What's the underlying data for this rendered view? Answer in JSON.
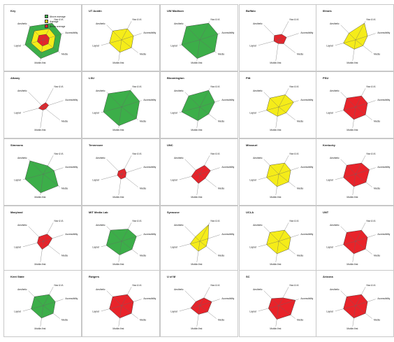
{
  "colors": {
    "above": "#3cae49",
    "average": "#f5ec19",
    "below": "#e8232a",
    "axis": "#666666"
  },
  "legend": [
    {
      "label": "Above average",
      "level": "above"
    },
    {
      "label": "Average",
      "level": "average"
    },
    {
      "label": "Below average",
      "level": "below"
    }
  ],
  "axes": [
    "Nav & IA",
    "Accessibility",
    "Media",
    "Mobile-first",
    "Layout",
    "Aesthetic"
  ],
  "chart_data": [
    {
      "type": "radar",
      "title": "Key",
      "key": true
    },
    {
      "type": "radar",
      "title": "UT Austin",
      "rating": "average",
      "values": [
        2,
        2,
        2,
        2,
        2,
        2
      ]
    },
    {
      "type": "radar",
      "title": "UW Madison",
      "rating": "above",
      "values": [
        3,
        3,
        3,
        3,
        3,
        3
      ]
    },
    {
      "type": "radar",
      "title": "Buffalo",
      "rating": "below",
      "values": [
        1,
        1.3,
        1,
        0.6,
        0.8,
        1
      ]
    },
    {
      "type": "radar",
      "title": "Illinois",
      "rating": "average",
      "values": [
        3,
        2,
        1.5,
        1.5,
        2,
        1.5
      ]
    },
    {
      "type": "radar",
      "title": "Albany",
      "rating": "below",
      "values": [
        0.8,
        0.9,
        0.5,
        0.5,
        0.8,
        0.4
      ]
    },
    {
      "type": "radar",
      "title": "LSU",
      "rating": "above",
      "values": [
        3,
        3,
        3,
        3,
        3,
        3
      ]
    },
    {
      "type": "radar",
      "title": "Bloomington",
      "rating": "above",
      "values": [
        3,
        2.5,
        1.8,
        2.2,
        3,
        2.5
      ]
    },
    {
      "type": "radar",
      "title": "Pitt",
      "rating": "average",
      "values": [
        2.2,
        2.5,
        1.5,
        1.5,
        2,
        2
      ]
    },
    {
      "type": "radar",
      "title": "PSU",
      "rating": "below",
      "values": [
        2,
        2,
        2,
        2,
        2,
        2
      ]
    },
    {
      "type": "radar",
      "title": "Simmons",
      "rating": "above",
      "values": [
        1.5,
        1.8,
        3,
        3,
        3,
        3
      ]
    },
    {
      "type": "radar",
      "title": "Tennessee",
      "rating": "below",
      "values": [
        1,
        0.8,
        0.8,
        0.8,
        0.7,
        0.7
      ]
    },
    {
      "type": "radar",
      "title": "UNC",
      "rating": "below",
      "values": [
        1.6,
        1.8,
        1.1,
        1.5,
        1.4,
        0.9
      ]
    },
    {
      "type": "radar",
      "title": "Missouri",
      "rating": "average",
      "values": [
        2,
        2,
        2,
        2,
        2,
        2
      ]
    },
    {
      "type": "radar",
      "title": "Kentucky",
      "rating": "below",
      "values": [
        2,
        2.3,
        2.1,
        2,
        2,
        2
      ]
    },
    {
      "type": "radar",
      "title": "Maryland",
      "rating": "below",
      "values": [
        1.3,
        1.5,
        1,
        1.3,
        1,
        1
      ]
    },
    {
      "type": "radar",
      "title": "MIT Media Lab",
      "rating": "above",
      "values": [
        2.2,
        2.5,
        2.1,
        2.2,
        2.5,
        2.5
      ]
    },
    {
      "type": "radar",
      "title": "Syracuse",
      "rating": "average",
      "values": [
        3,
        1.4,
        1.3,
        1.6,
        1.6,
        1
      ]
    },
    {
      "type": "radar",
      "title": "UCLA",
      "rating": "average",
      "values": [
        2,
        2,
        2,
        2,
        2,
        2
      ]
    },
    {
      "type": "radar",
      "title": "UNT",
      "rating": "below",
      "values": [
        2,
        2,
        2,
        2,
        2,
        2
      ]
    },
    {
      "type": "radar",
      "title": "Kent State",
      "rating": "above",
      "values": [
        2,
        2,
        2,
        2,
        2,
        2
      ]
    },
    {
      "type": "radar",
      "title": "Rutgers",
      "rating": "below",
      "values": [
        2,
        2,
        2,
        2,
        2,
        2
      ]
    },
    {
      "type": "radar",
      "title": "U of M",
      "rating": "below",
      "values": [
        1.4,
        2,
        1.6,
        1.4,
        1.5,
        0.9
      ]
    },
    {
      "type": "radar",
      "title": "SC",
      "rating": "below",
      "values": [
        1.4,
        2.8,
        2.4,
        2.2,
        1.7,
        1.6
      ]
    },
    {
      "type": "radar",
      "title": "Arizona",
      "rating": "below",
      "values": [
        2,
        2,
        2,
        2,
        2,
        2
      ]
    }
  ]
}
